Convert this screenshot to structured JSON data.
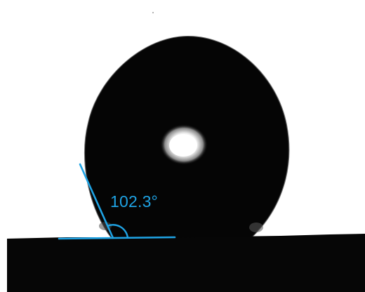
{
  "measurement": {
    "contact_angle_label": "102.3°",
    "contact_angle_deg": 102.3
  },
  "colors": {
    "background": "#ffffff",
    "droplet": "#050505",
    "substrate": "#060606",
    "highlight": "#ffffff",
    "annotation": "#1fa3e4"
  }
}
